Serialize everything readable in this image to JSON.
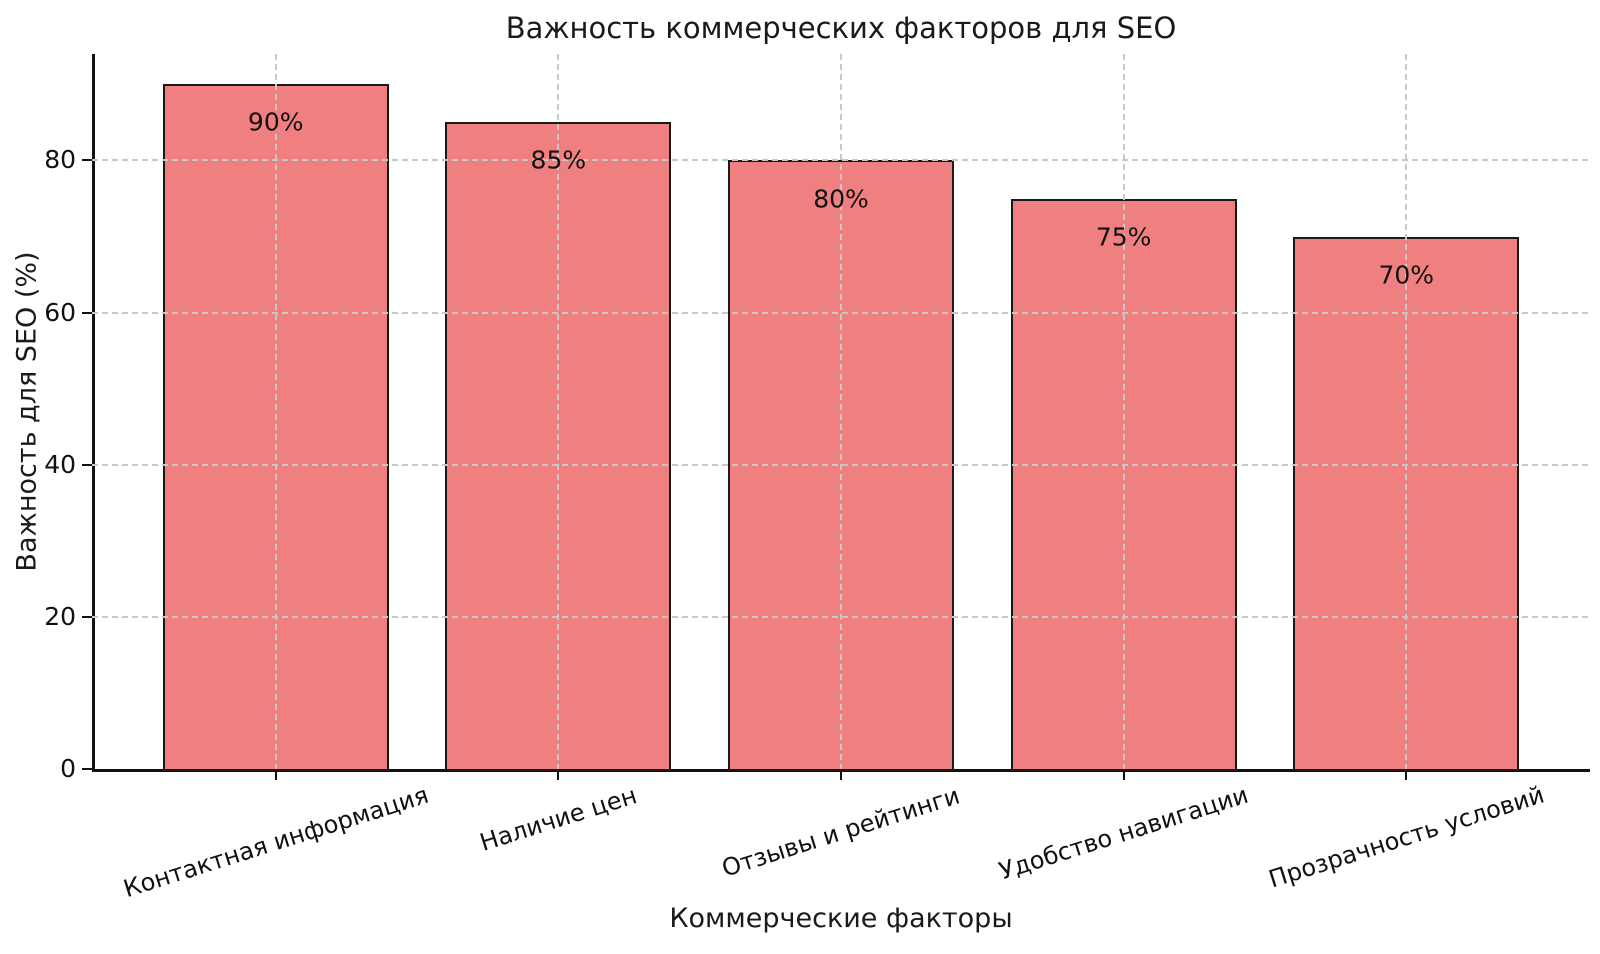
{
  "chart_data": {
    "type": "bar",
    "title": "Важность коммерческих факторов для SEO",
    "xlabel": "Коммерческие факторы",
    "ylabel": "Важность для SEO (%)",
    "categories": [
      "Контактная информация",
      "Наличие цен",
      "Отзывы и рейтинги",
      "Удобство навигации",
      "Прозрачность условий"
    ],
    "values": [
      90,
      85,
      80,
      75,
      70
    ],
    "bar_labels": [
      "90%",
      "85%",
      "80%",
      "75%",
      "70%"
    ],
    "yticks": [
      0,
      20,
      40,
      60,
      80
    ],
    "ylim": [
      0,
      94
    ],
    "xlim": [
      -0.65,
      4.65
    ],
    "bar_width": 0.8,
    "grid": true,
    "grid_style": "dashed",
    "legend": false,
    "colors": {
      "bar_fill": "#F08080",
      "bar_edge": "#1a1a1a",
      "grid": "#c8c8c8",
      "text": "#111111",
      "background": "#ffffff"
    }
  }
}
